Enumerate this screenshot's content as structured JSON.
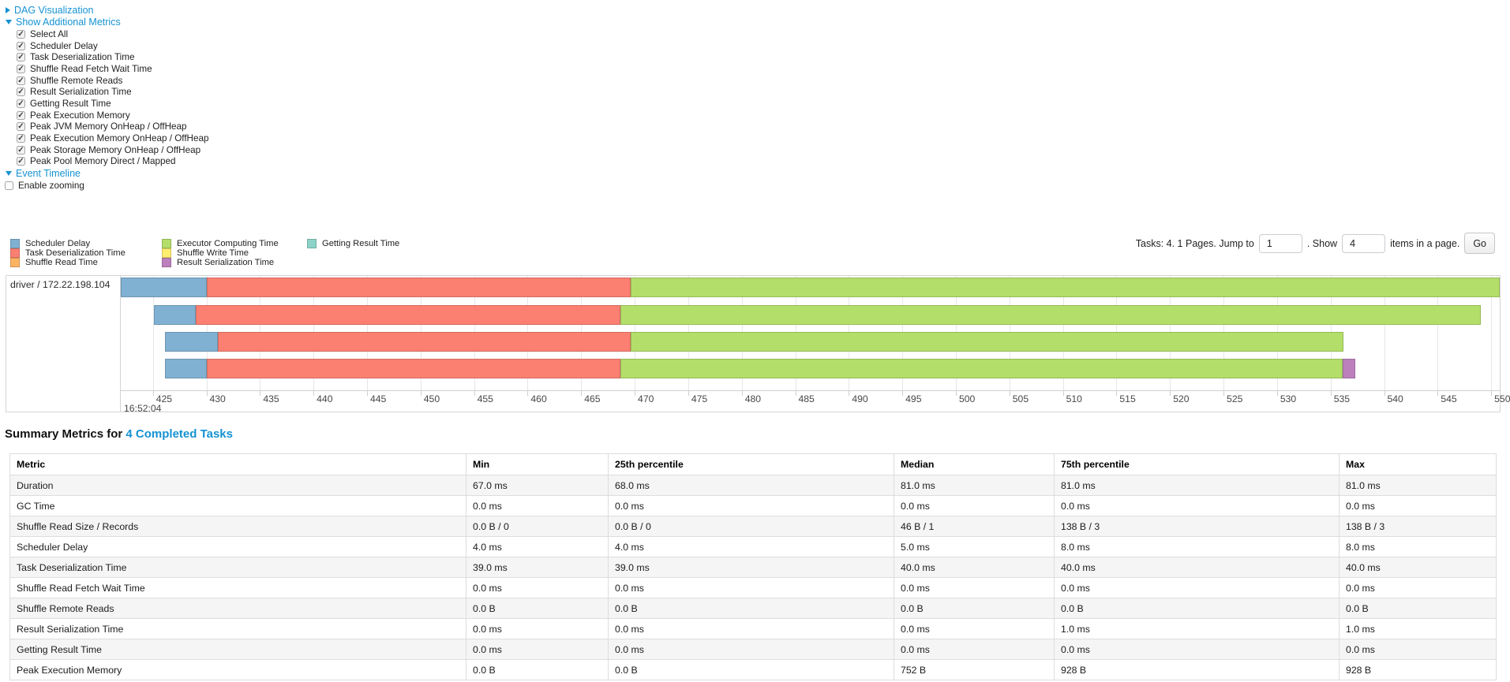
{
  "sections": {
    "dag_label": "DAG Visualization",
    "metrics_label": "Show Additional Metrics",
    "timeline_label": "Event Timeline",
    "enable_zooming_label": "Enable zooming"
  },
  "metrics_options": [
    "Select All",
    "Scheduler Delay",
    "Task Deserialization Time",
    "Shuffle Read Fetch Wait Time",
    "Shuffle Remote Reads",
    "Result Serialization Time",
    "Getting Result Time",
    "Peak Execution Memory",
    "Peak JVM Memory OnHeap / OffHeap",
    "Peak Execution Memory OnHeap / OffHeap",
    "Peak Storage Memory OnHeap / OffHeap",
    "Peak Pool Memory Direct / Mapped"
  ],
  "legend_columns": [
    [
      {
        "label": "Scheduler Delay",
        "color": "#80B1D3"
      },
      {
        "label": "Task Deserialization Time",
        "color": "#FB8072"
      },
      {
        "label": "Shuffle Read Time",
        "color": "#FDB462"
      }
    ],
    [
      {
        "label": "Executor Computing Time",
        "color": "#B3DE69"
      },
      {
        "label": "Shuffle Write Time",
        "color": "#FFED6F"
      },
      {
        "label": "Result Serialization Time",
        "color": "#BC80BD"
      }
    ],
    [
      {
        "label": "Getting Result Time",
        "color": "#8DD3C7"
      }
    ]
  ],
  "pagination": {
    "prefix": "Tasks: 4. 1 Pages. Jump to",
    "jump_value": "1",
    "show_label": ". Show",
    "show_value": "4",
    "suffix": "items in a page.",
    "go_label": "Go"
  },
  "chart_data": {
    "type": "timeline-gantt",
    "group_label": "driver / 172.22.198.104",
    "axis": {
      "unit": "ms of second 16:52:04",
      "major_label": "16:52:04",
      "domain_start": 422.0,
      "domain_end": 550.8,
      "tick_start": 425,
      "tick_end": 550,
      "tick_step": 5
    },
    "colors": {
      "scheduler_delay": "#80B1D3",
      "task_deserialization": "#FB8072",
      "shuffle_read": "#FDB462",
      "executor_computing": "#B3DE69",
      "shuffle_write": "#FFED6F",
      "result_serialization": "#BC80BD",
      "getting_result": "#8DD3C7"
    },
    "row_layout": {
      "tops": [
        2,
        37,
        71,
        105
      ],
      "height": 25
    },
    "tasks": [
      {
        "segments": [
          {
            "name": "scheduler_delay",
            "start": 422.0,
            "end": 430.0
          },
          {
            "name": "task_deserialization",
            "start": 430.0,
            "end": 469.6
          },
          {
            "name": "executor_computing",
            "start": 469.6,
            "end": 550.8
          }
        ]
      },
      {
        "segments": [
          {
            "name": "scheduler_delay",
            "start": 425.1,
            "end": 429.0
          },
          {
            "name": "task_deserialization",
            "start": 429.0,
            "end": 468.7
          },
          {
            "name": "executor_computing",
            "start": 468.7,
            "end": 549.0
          }
        ]
      },
      {
        "segments": [
          {
            "name": "scheduler_delay",
            "start": 426.1,
            "end": 431.1
          },
          {
            "name": "task_deserialization",
            "start": 431.1,
            "end": 469.6
          },
          {
            "name": "executor_computing",
            "start": 469.6,
            "end": 536.2
          }
        ]
      },
      {
        "segments": [
          {
            "name": "scheduler_delay",
            "start": 426.1,
            "end": 430.0
          },
          {
            "name": "task_deserialization",
            "start": 430.0,
            "end": 468.7
          },
          {
            "name": "executor_computing",
            "start": 468.7,
            "end": 536.1
          },
          {
            "name": "result_serialization",
            "start": 536.1,
            "end": 537.3
          }
        ]
      }
    ]
  },
  "summary": {
    "title_prefix": "Summary Metrics for",
    "title_link": "4 Completed Tasks",
    "columns": [
      "Metric",
      "Min",
      "25th percentile",
      "Median",
      "75th percentile",
      "Max"
    ],
    "rows": [
      {
        "metric": "Duration",
        "values": [
          "67.0 ms",
          "68.0 ms",
          "81.0 ms",
          "81.0 ms",
          "81.0 ms"
        ]
      },
      {
        "metric": "GC Time",
        "values": [
          "0.0 ms",
          "0.0 ms",
          "0.0 ms",
          "0.0 ms",
          "0.0 ms"
        ]
      },
      {
        "metric": "Shuffle Read Size / Records",
        "values": [
          "0.0 B / 0",
          "0.0 B / 0",
          "46 B / 1",
          "138 B / 3",
          "138 B / 3"
        ]
      },
      {
        "metric": "Scheduler Delay",
        "values": [
          "4.0 ms",
          "4.0 ms",
          "5.0 ms",
          "8.0 ms",
          "8.0 ms"
        ]
      },
      {
        "metric": "Task Deserialization Time",
        "values": [
          "39.0 ms",
          "39.0 ms",
          "40.0 ms",
          "40.0 ms",
          "40.0 ms"
        ]
      },
      {
        "metric": "Shuffle Read Fetch Wait Time",
        "values": [
          "0.0 ms",
          "0.0 ms",
          "0.0 ms",
          "0.0 ms",
          "0.0 ms"
        ]
      },
      {
        "metric": "Shuffle Remote Reads",
        "values": [
          "0.0 B",
          "0.0 B",
          "0.0 B",
          "0.0 B",
          "0.0 B"
        ]
      },
      {
        "metric": "Result Serialization Time",
        "values": [
          "0.0 ms",
          "0.0 ms",
          "0.0 ms",
          "1.0 ms",
          "1.0 ms"
        ]
      },
      {
        "metric": "Getting Result Time",
        "values": [
          "0.0 ms",
          "0.0 ms",
          "0.0 ms",
          "0.0 ms",
          "0.0 ms"
        ]
      },
      {
        "metric": "Peak Execution Memory",
        "values": [
          "0.0 B",
          "0.0 B",
          "752 B",
          "928 B",
          "928 B"
        ]
      }
    ]
  }
}
